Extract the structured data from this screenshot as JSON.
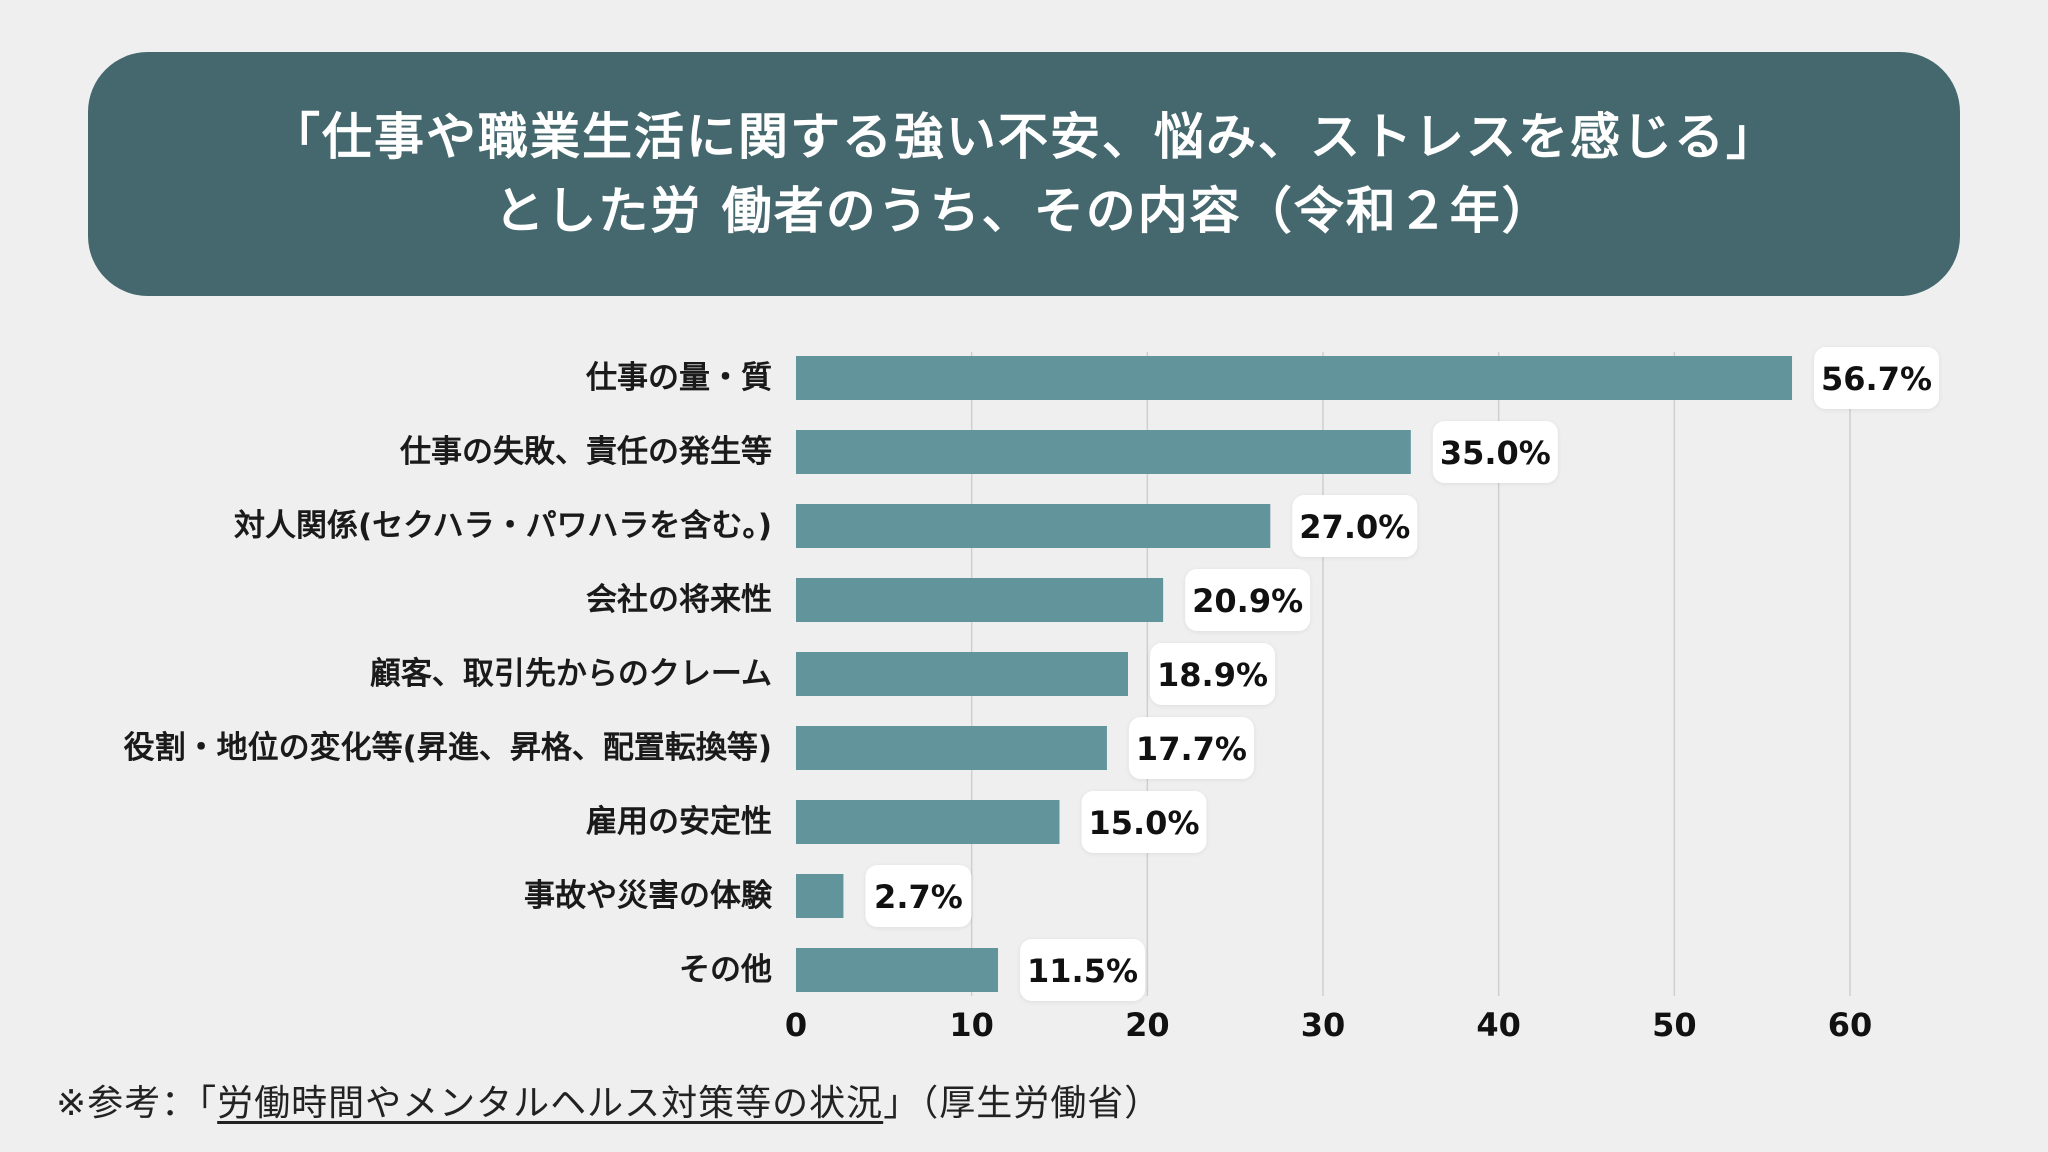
{
  "header": {
    "title_line1": "「仕事や職業生活に関する強い不安、悩み、ストレスを感じる」",
    "title_line2": "とした労 働者のうち、その内容（令和２年）"
  },
  "chart_data": {
    "type": "bar",
    "orientation": "horizontal",
    "categories": [
      "仕事の量・質",
      "仕事の失敗、責任の発生等",
      "対人関係(セクハラ・パワハラを含む。)",
      "会社の将来性",
      "顧客、取引先からのクレーム",
      "役割・地位の変化等(昇進、昇格、配置転換等)",
      "雇用の安定性",
      "事故や災害の体験",
      "その他"
    ],
    "values": [
      56.7,
      35.0,
      27.0,
      20.9,
      18.9,
      17.7,
      15.0,
      2.7,
      11.5
    ],
    "value_labels": [
      "56.7%",
      "35.0%",
      "27.0%",
      "20.9%",
      "18.9%",
      "17.7%",
      "15.0%",
      "2.7%",
      "11.5%"
    ],
    "x_ticks": [
      0,
      10,
      20,
      30,
      40,
      50,
      60
    ],
    "xlim": [
      0,
      60
    ],
    "grid": true,
    "legend": "none"
  },
  "colors": {
    "banner": "#44686d",
    "bar": "#62959b",
    "grid": "#cfcfcf",
    "background": "#efefef"
  },
  "footnote": {
    "prefix": "※参考：「",
    "link_text": "労働時間やメンタルヘルス対策等の状況",
    "suffix": "」（厚生労働省）"
  }
}
